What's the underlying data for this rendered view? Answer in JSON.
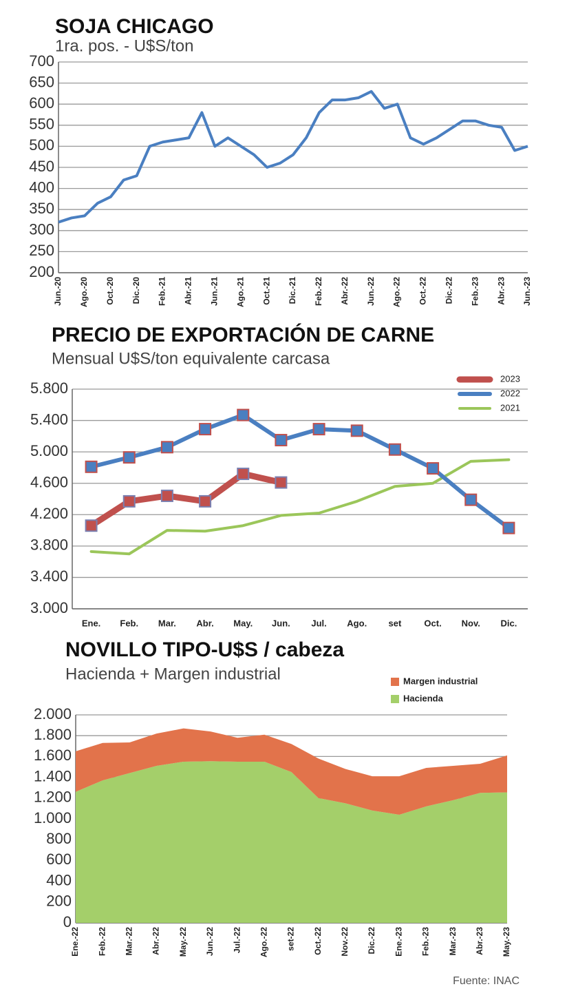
{
  "chart_data": [
    {
      "type": "line",
      "title": "SOJA CHICAGO",
      "subtitle": "1ra. pos. - U$S/ton",
      "categories": [
        "Jun.-20",
        null,
        "Ago.-20",
        null,
        "Oct.-20",
        null,
        "Dic.-20",
        null,
        "Feb.-21",
        null,
        "Abr.-21",
        null,
        "Jun.-21",
        null,
        "Ago.-21",
        null,
        "Oct.-21",
        null,
        "Dic.-21",
        null,
        "Feb.-22",
        null,
        "Abr.-22",
        null,
        "Jun.-22",
        null,
        "Ago.-22",
        null,
        "Oct.-22",
        null,
        "Dic.-22",
        null,
        "Feb.-23",
        null,
        "Abr.-23",
        null,
        "Jun.-23"
      ],
      "values": [
        320,
        330,
        335,
        365,
        380,
        420,
        430,
        500,
        510,
        515,
        520,
        580,
        500,
        520,
        500,
        480,
        450,
        460,
        480,
        520,
        580,
        610,
        610,
        615,
        630,
        590,
        600,
        520,
        505,
        520,
        540,
        560,
        560,
        550,
        545,
        490,
        500
      ],
      "color": "#4a7fc1",
      "ylim": [
        200,
        700
      ],
      "yticks": [
        200,
        250,
        300,
        350,
        400,
        450,
        500,
        550,
        600,
        650,
        700
      ],
      "grid": true
    },
    {
      "type": "line",
      "title": "PRECIO DE EXPORTACIÓN DE CARNE",
      "subtitle": "Mensual  U$S/ton equivalente carcasa",
      "categories": [
        "Ene.",
        "Feb.",
        "Mar.",
        "Abr.",
        "May.",
        "Jun.",
        "Jul.",
        "Ago.",
        "set",
        "Oct.",
        "Nov.",
        "Dic."
      ],
      "series": [
        {
          "name": "2023",
          "color": "#c0504d",
          "marker": "square",
          "values": [
            4060,
            4370,
            4440,
            4370,
            4720,
            4610,
            null,
            null,
            null,
            null,
            null,
            null
          ]
        },
        {
          "name": "2022",
          "color": "#4a7fc1",
          "marker": "square",
          "values": [
            4810,
            4930,
            5060,
            5290,
            5470,
            5150,
            5290,
            5270,
            5030,
            4790,
            4390,
            4030
          ]
        },
        {
          "name": "2021",
          "color": "#9bc65a",
          "values": [
            3730,
            3700,
            4000,
            3990,
            4060,
            4190,
            4220,
            4370,
            4560,
            4600,
            4880,
            4900
          ]
        }
      ],
      "ylim": [
        3000,
        5800
      ],
      "yticks": [
        {
          "value": 3000,
          "label": "3.000"
        },
        {
          "value": 3400,
          "label": "3.400"
        },
        {
          "value": 3800,
          "label": "3.800"
        },
        {
          "value": 4200,
          "label": "4.200"
        },
        {
          "value": 4600,
          "label": "4.600"
        },
        {
          "value": 5000,
          "label": "5.000"
        },
        {
          "value": 5400,
          "label": "5.400"
        },
        {
          "value": 5800,
          "label": "5.800"
        }
      ],
      "grid": true,
      "legend": "top-right"
    },
    {
      "type": "stacked_area",
      "title": "NOVILLO TIPO-U$S / cabeza",
      "subtitle": "Hacienda + Margen industrial",
      "categories": [
        "Ene.-22",
        "Feb.-22",
        "Mar.-22",
        "Abr.-22",
        "May.-22",
        "Jun.-22",
        "Jul.-22",
        "Ago.-22",
        "set-22",
        "Oct.-22",
        "Nov.-22",
        "Dic.-22",
        "Ene.-23",
        "Feb.-23",
        "Mar.-23",
        "Abr.-23",
        "May.-23"
      ],
      "series": [
        {
          "name": "Hacienda",
          "color": "#a4cf6a",
          "values": [
            1260,
            1370,
            1440,
            1510,
            1550,
            1555,
            1550,
            1550,
            1450,
            1200,
            1150,
            1080,
            1040,
            1120,
            1180,
            1250,
            1255
          ]
        },
        {
          "name": "Margen industrial",
          "color": "#e2734b",
          "values": [
            390,
            360,
            295,
            310,
            320,
            285,
            230,
            260,
            270,
            380,
            330,
            330,
            370,
            370,
            330,
            280,
            355
          ]
        }
      ],
      "ylim": [
        0,
        2000
      ],
      "yticks": [
        0,
        200,
        400,
        600,
        800,
        {
          "value": 1000,
          "label": "1.000"
        },
        {
          "value": 1200,
          "label": "1.200"
        },
        {
          "value": 1400,
          "label": "1.400"
        },
        {
          "value": 1600,
          "label": "1.600"
        },
        {
          "value": 1800,
          "label": "1.800"
        },
        {
          "value": 2000,
          "label": "2.000"
        }
      ],
      "grid": true,
      "legend": "top-right"
    }
  ],
  "source": "Fuente: INAC"
}
